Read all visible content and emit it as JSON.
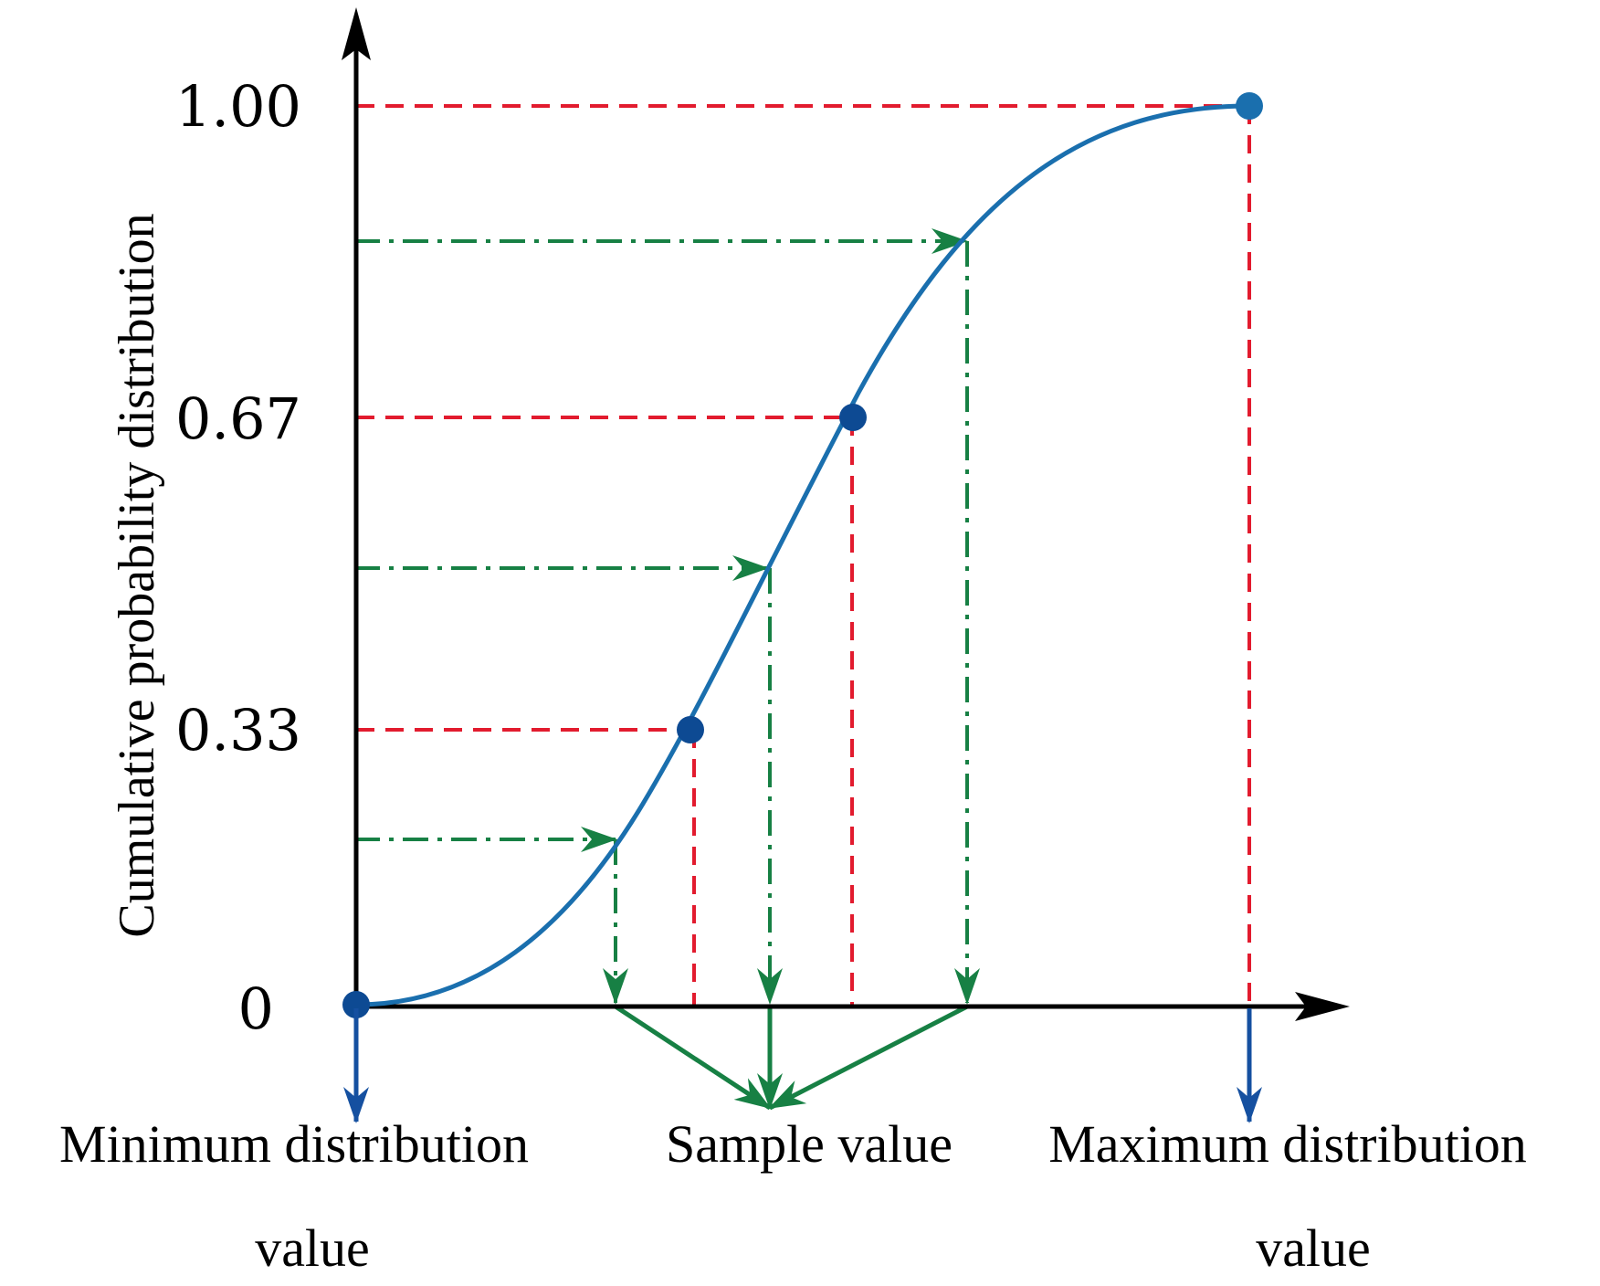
{
  "diagram": {
    "y_axis_title": "Cumulative probability distribution",
    "y_ticks": [
      "1.00",
      "0.67",
      "0.33",
      "0"
    ],
    "bottom_labels": {
      "min_line1": "Minimum distribution",
      "min_line2": "value",
      "sample": "Sample value",
      "max_line1": "Maximum distribution",
      "max_line2": "value"
    },
    "colors": {
      "axis": "#000000",
      "curve": "#1a6fae",
      "points": "#0d4a93",
      "red_guides": "#e21b2e",
      "green_guides": "#178044",
      "blue_arrows": "#1550a0"
    }
  }
}
